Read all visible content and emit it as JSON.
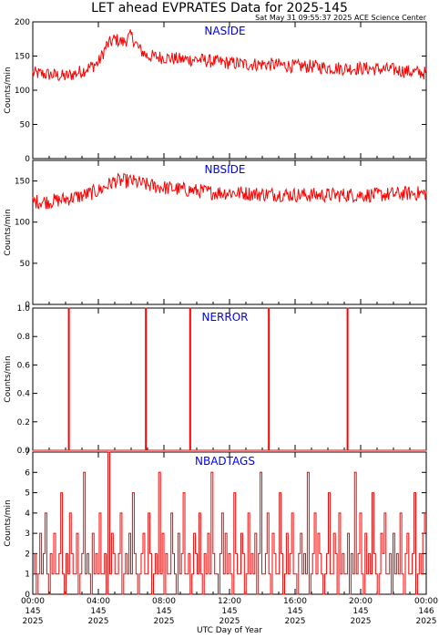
{
  "title": "LET ahead EVPRATES Data for 2025-145",
  "subtitle": "Sat May 31 09:55:37 2025 ACE Science Center",
  "xlabel": "UTC Day of Year",
  "colors": {
    "data": "#ff0000",
    "panel_label": "#0000ff",
    "axes": "#000000"
  },
  "chart_data": [
    {
      "type": "line",
      "label": "NASIDE",
      "ylabel": "Counts/min",
      "ylim": [
        0,
        200
      ],
      "yticks": [
        "0",
        "50",
        "100",
        "150",
        "200"
      ],
      "x_hours": [
        0,
        1,
        2,
        3,
        4,
        4.5,
        5,
        5.5,
        6,
        6.5,
        7,
        8,
        9,
        10,
        11,
        12,
        13,
        14,
        15,
        16,
        17,
        18,
        19,
        20,
        21,
        22,
        23,
        24
      ],
      "values": [
        125,
        123,
        120,
        128,
        140,
        165,
        175,
        170,
        180,
        160,
        150,
        148,
        145,
        145,
        142,
        140,
        138,
        138,
        137,
        135,
        135,
        133,
        132,
        132,
        131,
        130,
        127,
        125
      ],
      "noise": 10
    },
    {
      "type": "line",
      "label": "NBSIDE",
      "ylabel": "Counts/min",
      "ylim": [
        0,
        175
      ],
      "yticks": [
        "0",
        "50",
        "100",
        "150"
      ],
      "x_hours": [
        0,
        1,
        2,
        3,
        4,
        5,
        6,
        7,
        8,
        9,
        10,
        11,
        12,
        13,
        14,
        15,
        16,
        17,
        18,
        19,
        20,
        21,
        22,
        23,
        24
      ],
      "values": [
        125,
        125,
        128,
        132,
        138,
        150,
        150,
        145,
        142,
        140,
        138,
        136,
        136,
        135,
        134,
        134,
        133,
        133,
        133,
        133,
        133,
        133,
        134,
        135,
        135
      ],
      "noise": 9
    },
    {
      "type": "line",
      "label": "NERROR",
      "ylabel": "Counts/min",
      "ylim": [
        0,
        1
      ],
      "yticks": [
        "0.0",
        "0.2",
        "0.4",
        "0.6",
        "0.8",
        "1.0"
      ],
      "spikes_hours": [
        2.2,
        6.9,
        9.6,
        14.4,
        19.2
      ],
      "spike_value": 1,
      "baseline": 0
    },
    {
      "type": "line",
      "label": "NBADTAGS",
      "ylabel": "Counts/min",
      "ylim": [
        0,
        7
      ],
      "yticks": [
        "0",
        "1",
        "2",
        "3",
        "4",
        "5",
        "6",
        "7"
      ],
      "values": [
        1,
        2,
        0,
        1,
        3,
        1,
        2,
        4,
        1,
        0,
        2,
        1,
        3,
        1,
        1,
        2,
        5,
        1,
        0,
        2,
        1,
        4,
        2,
        1,
        1,
        3,
        0,
        1,
        2,
        6,
        1,
        2,
        1,
        0,
        3,
        1,
        2,
        1,
        4,
        1,
        1,
        2,
        0,
        7,
        1,
        3,
        2,
        1,
        1,
        2,
        4,
        0,
        1,
        2,
        1,
        3,
        1,
        5,
        2,
        1,
        0,
        1,
        2,
        3,
        1,
        1,
        4,
        2,
        0,
        1,
        2,
        1,
        6,
        1,
        3,
        0,
        2,
        1,
        1,
        4,
        2,
        1,
        0,
        3,
        1,
        2,
        5,
        1,
        1,
        2,
        0,
        1,
        3,
        2,
        1,
        4,
        1,
        0,
        2,
        1,
        3,
        1,
        6,
        2,
        1,
        1,
        0,
        2,
        4,
        1,
        3,
        1,
        2,
        1,
        0,
        5,
        2,
        1,
        1,
        3,
        2,
        0,
        1,
        4,
        1,
        2,
        1,
        3,
        0,
        2,
        6,
        1,
        1,
        2,
        4,
        1,
        0,
        3,
        2,
        1,
        1,
        5,
        2,
        0,
        1,
        3,
        1,
        2,
        4,
        1,
        1,
        0,
        2,
        3,
        1,
        2,
        1,
        6,
        0,
        1,
        2,
        4,
        1,
        3,
        2,
        1,
        0,
        1,
        2,
        5,
        1,
        1,
        3,
        2,
        0,
        4,
        1,
        2,
        1,
        1,
        3,
        0,
        2,
        1,
        6,
        1,
        2,
        4,
        1,
        0,
        3,
        1,
        2,
        1,
        5,
        2,
        1,
        0,
        1,
        3,
        2,
        4,
        1,
        1,
        2,
        0,
        3,
        1,
        2,
        1,
        4,
        1,
        0,
        2,
        3,
        1,
        1,
        2,
        5,
        0,
        1,
        2,
        1,
        3,
        4
      ]
    }
  ],
  "x_axis": {
    "range_hours": [
      0,
      24
    ],
    "major_ticks": [
      {
        "h": 0,
        "time": "00:00",
        "doy": "145",
        "year": "2025"
      },
      {
        "h": 4,
        "time": "04:00",
        "doy": "145",
        "year": "2025"
      },
      {
        "h": 8,
        "time": "08:00",
        "doy": "145",
        "year": "2025"
      },
      {
        "h": 12,
        "time": "12:00",
        "doy": "145",
        "year": "2025"
      },
      {
        "h": 16,
        "time": "16:00",
        "doy": "145",
        "year": "2025"
      },
      {
        "h": 20,
        "time": "20:00",
        "doy": "145",
        "year": "2025"
      },
      {
        "h": 24,
        "time": "00:00",
        "doy": "146",
        "year": "2025"
      }
    ]
  }
}
